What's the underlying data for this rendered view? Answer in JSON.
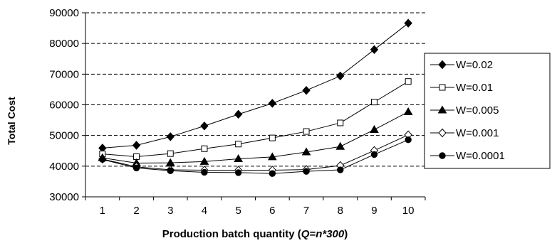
{
  "chart_data": {
    "type": "line",
    "title": "",
    "xlabel_parts": [
      "Production batch quantity (",
      "Q=n*300",
      ")"
    ],
    "ylabel": "Total Cost",
    "x": [
      1,
      2,
      3,
      4,
      5,
      6,
      7,
      8,
      9,
      10
    ],
    "ylim": [
      30000,
      90000
    ],
    "yticks": [
      30000,
      40000,
      50000,
      60000,
      70000,
      80000,
      90000
    ],
    "grid": "horizontal dashed",
    "legend_position": "right",
    "series": [
      {
        "name": "W=0.02",
        "marker": "diamond-filled",
        "values": [
          45900,
          46800,
          49600,
          53100,
          56900,
          60500,
          64700,
          69400,
          78000,
          86600
        ]
      },
      {
        "name": "W=0.01",
        "marker": "square-open",
        "values": [
          44000,
          43100,
          44100,
          45700,
          47200,
          49200,
          51300,
          54100,
          60900,
          67600
        ]
      },
      {
        "name": "W=0.005",
        "marker": "triangle-filled",
        "values": [
          42700,
          41000,
          41100,
          41500,
          42400,
          43000,
          44600,
          46400,
          51900,
          57700
        ]
      },
      {
        "name": "W=0.001",
        "marker": "diamond-open",
        "values": [
          42300,
          39800,
          38800,
          38700,
          38700,
          38700,
          38900,
          40200,
          45100,
          50200
        ]
      },
      {
        "name": "W=0.0001",
        "marker": "circle-filled",
        "values": [
          42200,
          39400,
          38500,
          38000,
          37900,
          37600,
          38300,
          38800,
          43800,
          48600
        ]
      }
    ]
  }
}
